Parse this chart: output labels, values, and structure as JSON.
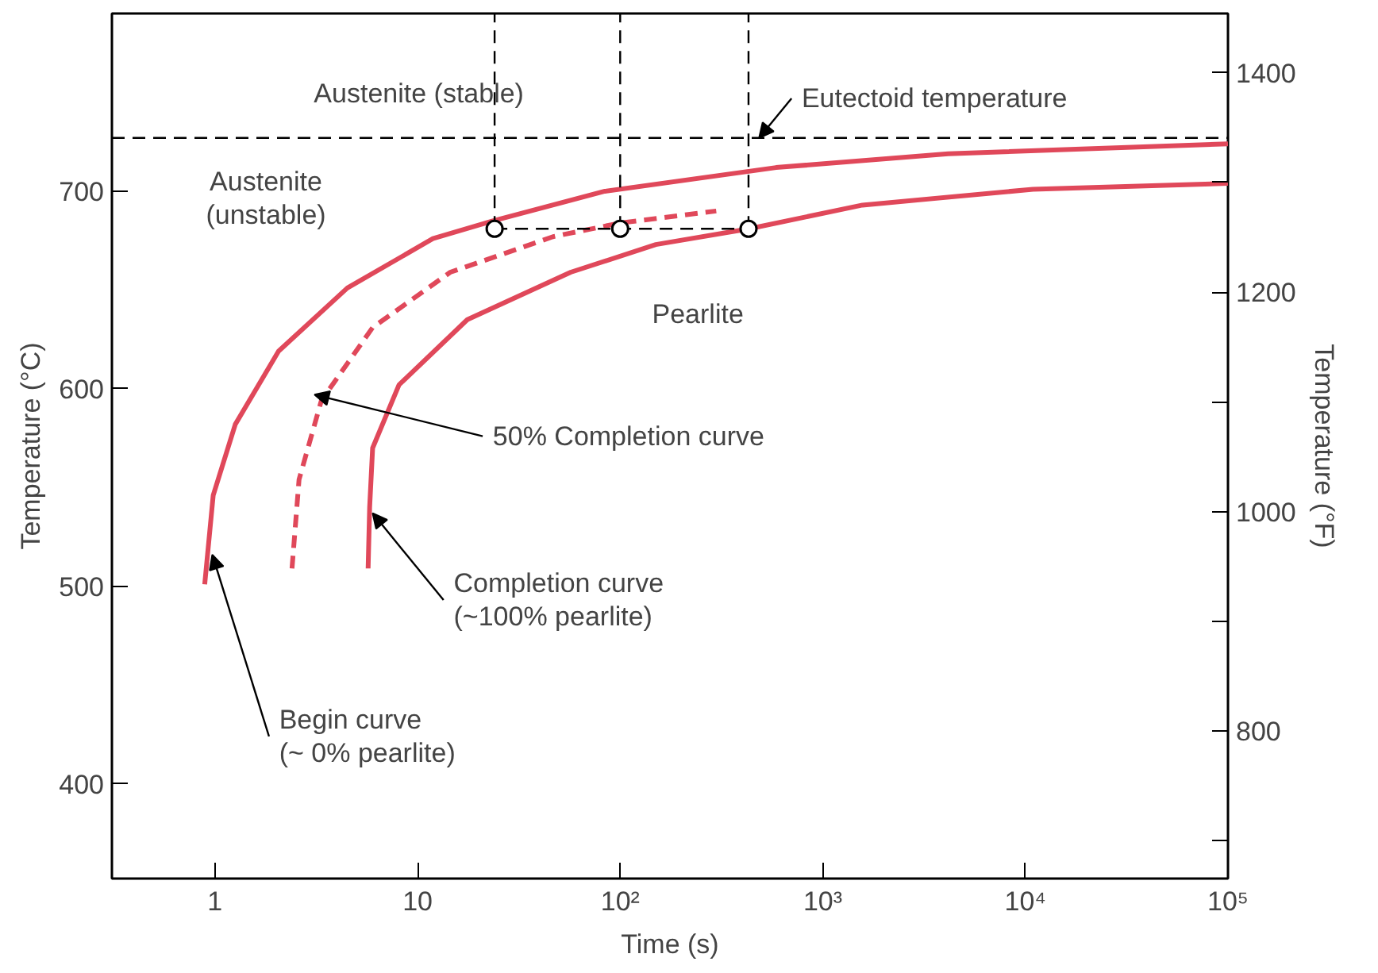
{
  "chart_data": {
    "type": "line",
    "xlabel": "Time (s)",
    "ylabel": "Temperature (°C)",
    "y2label": "Temperature (°F)",
    "log": "x",
    "grid": false,
    "xlim": [
      0.31,
      100000
    ],
    "xticks": [
      1,
      10,
      {
        "value": 100,
        "label": "10²"
      },
      {
        "value": 1000,
        "label": "10³"
      },
      {
        "value": 10000,
        "label": "10⁴"
      },
      {
        "value": 100000,
        "label": "10⁵"
      }
    ],
    "ylim": [
      352,
      790
    ],
    "yticks": [
      400,
      500,
      600,
      700
    ],
    "y2lim": [
      665.6,
      1454
    ],
    "y2ticks": [
      {
        "value": 700,
        "label": null
      },
      800,
      {
        "value": 900,
        "label": null
      },
      1000,
      {
        "value": 1100,
        "label": null
      },
      1200,
      {
        "value": 1300,
        "label": null
      },
      1400
    ],
    "ref_lines": [
      {
        "axis": "y",
        "value": 727,
        "color": "#000000",
        "line_style": "dashed"
      }
    ],
    "series": [
      {
        "color": "#e0485a",
        "line_style": "solid",
        "x": [
          0.89,
          0.98,
          1.26,
          2.06,
          4.5,
          11.9,
          23.5,
          84,
          588,
          4160,
          100000
        ],
        "values": [
          501,
          546,
          582,
          619,
          651,
          676,
          685,
          700,
          712,
          719,
          724
        ]
      },
      {
        "color": "#e0485a",
        "line_style": "dashed",
        "x": [
          2.4,
          2.6,
          3.35,
          6.0,
          14.5,
          46.6,
          101,
          298
        ],
        "values": [
          509,
          554,
          594,
          631,
          659,
          677,
          684,
          690
        ]
      },
      {
        "color": "#e0485a",
        "line_style": "solid",
        "x": [
          5.7,
          5.8,
          6.0,
          8.1,
          17.6,
          57,
          150,
          433,
          1570,
          10900,
          100000
        ],
        "values": [
          509,
          540,
          570,
          602,
          635,
          659,
          673,
          681,
          693,
          701,
          704
        ]
      },
      {
        "type": "line",
        "color": "#000000",
        "line_style": "dashed",
        "x": [
          24,
          430
        ],
        "values": [
          681,
          681
        ]
      },
      {
        "type": "line",
        "color": "#000000",
        "line_style": "dashed",
        "x": [
          24,
          24
        ],
        "values": [
          681,
          790
        ]
      },
      {
        "type": "line",
        "color": "#000000",
        "line_style": "dashed",
        "x": [
          100,
          100
        ],
        "values": [
          681,
          790
        ]
      },
      {
        "type": "line",
        "color": "#000000",
        "line_style": "dashed",
        "x": [
          430,
          430
        ],
        "values": [
          681,
          790
        ]
      },
      {
        "type": "scatter",
        "color": "#000000",
        "marker": "circle",
        "x": [
          24,
          100,
          430
        ],
        "values": [
          681,
          681,
          681
        ]
      }
    ],
    "annotations": [
      "Austenite (stable)",
      {
        "text": "Eutectoid temperature",
        "x": 485,
        "y": 727
      },
      "Austenite\n(unstable)",
      "Pearlite",
      {
        "text": "50% Completion curve",
        "x": 3.1,
        "y": 597
      },
      {
        "text": "Completion curve\n(~100% pearlite)",
        "x": 6.0,
        "y": 537
      },
      {
        "text": "Begin curve\n(~ 0% pearlite)",
        "x": 0.97,
        "y": 516
      }
    ]
  }
}
